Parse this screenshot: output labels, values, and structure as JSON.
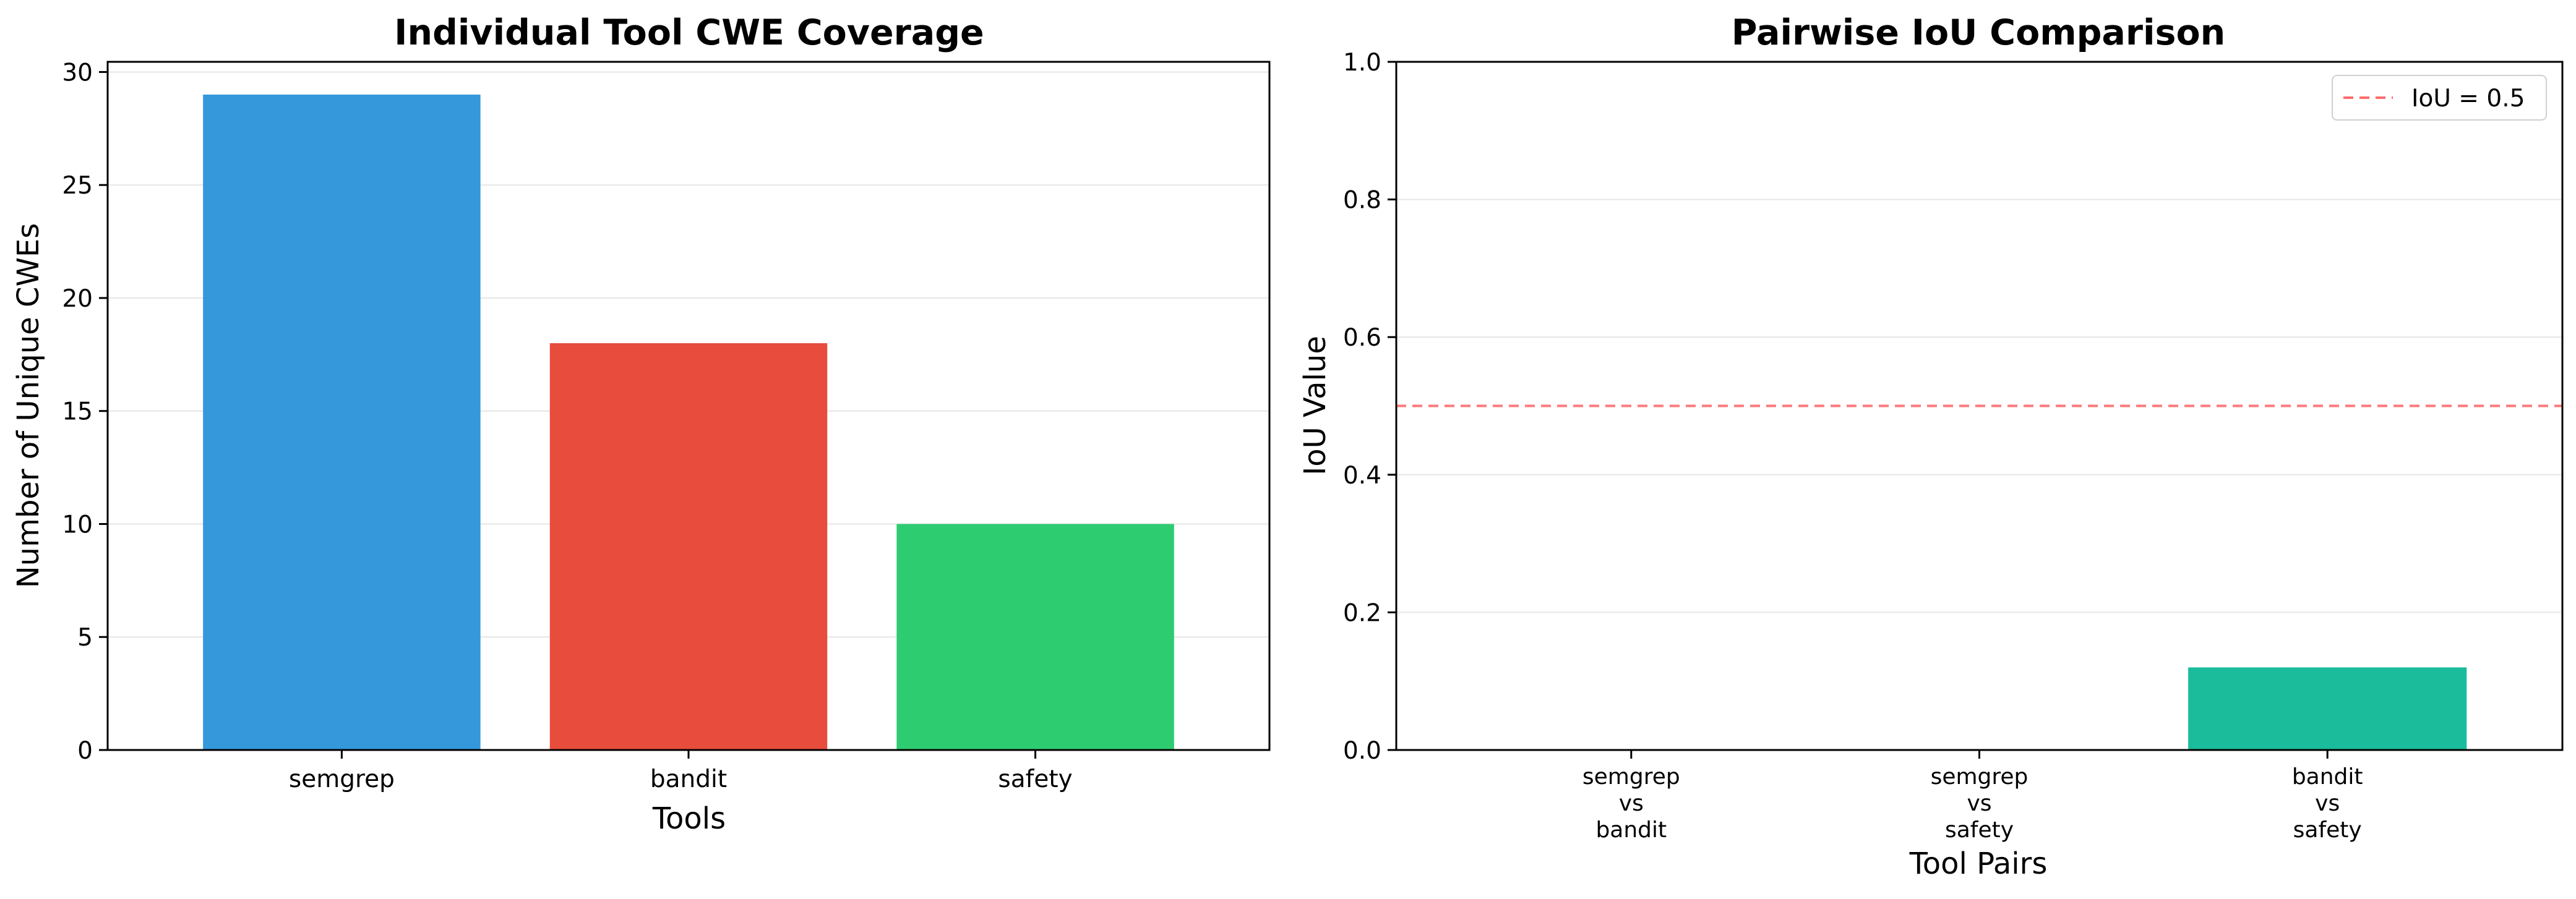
{
  "chart_data": [
    {
      "type": "bar",
      "title": "Individual Tool CWE Coverage",
      "xlabel": "Tools",
      "ylabel": "Number of Unique CWEs",
      "categories": [
        "semgrep",
        "bandit",
        "safety"
      ],
      "values": [
        29,
        18,
        10
      ],
      "colors": [
        "#3498db",
        "#e74c3c",
        "#2ecc71"
      ],
      "ylim": [
        0,
        30.45
      ],
      "yticks": [
        0,
        5,
        10,
        15,
        20,
        25,
        30
      ],
      "grid": "y"
    },
    {
      "type": "bar",
      "title": "Pairwise IoU Comparison",
      "xlabel": "Tool Pairs",
      "ylabel": "IoU Value",
      "categories": [
        [
          "semgrep",
          "vs",
          "bandit"
        ],
        [
          "semgrep",
          "vs",
          "safety"
        ],
        [
          "bandit",
          "vs",
          "safety"
        ]
      ],
      "values": [
        0.0,
        0.0,
        0.12
      ],
      "colors": [
        "#1abc9c",
        "#1abc9c",
        "#1abc9c"
      ],
      "ylim": [
        0,
        1.0
      ],
      "yticks": [
        "0.0",
        "0.2",
        "0.4",
        "0.6",
        "0.8",
        "1.0"
      ],
      "grid": "y",
      "reference_line": {
        "y": 0.5,
        "label": "IoU = 0.5",
        "color": "#ff6b6b",
        "style": "dashed"
      },
      "legend_position": "top-right"
    }
  ]
}
